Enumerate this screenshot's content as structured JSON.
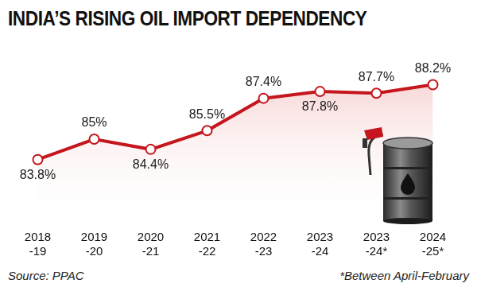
{
  "chart_data": {
    "type": "line",
    "title": "INDIA’S RISING OIL IMPORT DEPENDENCY",
    "categories": [
      [
        "2018",
        "-19"
      ],
      [
        "2019",
        "-20"
      ],
      [
        "2020",
        "-21"
      ],
      [
        "2021",
        "-22"
      ],
      [
        "2022",
        "-23"
      ],
      [
        "2023",
        "-24"
      ],
      [
        "2023",
        "-24*"
      ],
      [
        "2024",
        "-25*"
      ]
    ],
    "values": [
      83.8,
      85,
      84.4,
      85.5,
      87.4,
      87.8,
      87.7,
      88.2
    ],
    "value_labels": [
      "83.8%",
      "85%",
      "84.4%",
      "85.5%",
      "87.4%",
      "87.8%",
      "87.7%",
      "88.2%"
    ],
    "color": "#c4161c",
    "ylim": [
      80,
      90
    ],
    "tick_labels": "x",
    "grid": false,
    "data_labels": true,
    "marker": "circle",
    "source": "Source: PPAC",
    "note": "*Between April-February"
  }
}
